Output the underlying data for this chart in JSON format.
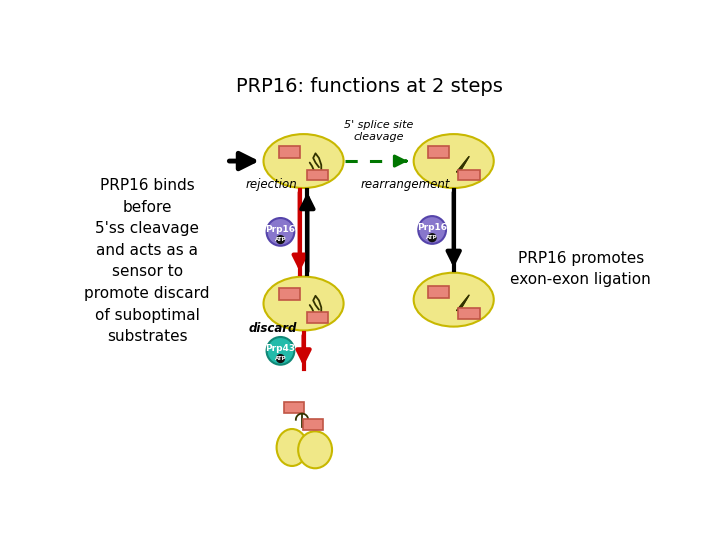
{
  "title": "PRP16: functions at 2 steps",
  "title_fontsize": 14,
  "background_color": "#ffffff",
  "left_text": "PRP16 binds\nbefore\n5'ss cleavage\nand acts as a\nsensor to\npromote discard\nof suboptimal\nsubstrates",
  "right_text": "PRP16 promotes\nexon-exon ligation",
  "splice_site_label": "5' splice site\ncleavage",
  "spliceosome_color": "#f0e888",
  "spliceosome_edge": "#c8b800",
  "exon_color": "#e8857a",
  "exon_edge": "#c05545",
  "prp16_color": "#8877cc",
  "prp16_edge": "#5544aa",
  "prp16_text_color": "#ffffff",
  "prp43_color": "#22bbaa",
  "prp43_edge": "#118877",
  "prp43_text_color": "#ffffff",
  "atp_color": "#111111",
  "arrow_black": "#000000",
  "arrow_red": "#cc0000",
  "arrow_green": "#007700",
  "rejection_label": "rejection",
  "rearrangement_label": "rearrangement",
  "discard_label": "discard"
}
